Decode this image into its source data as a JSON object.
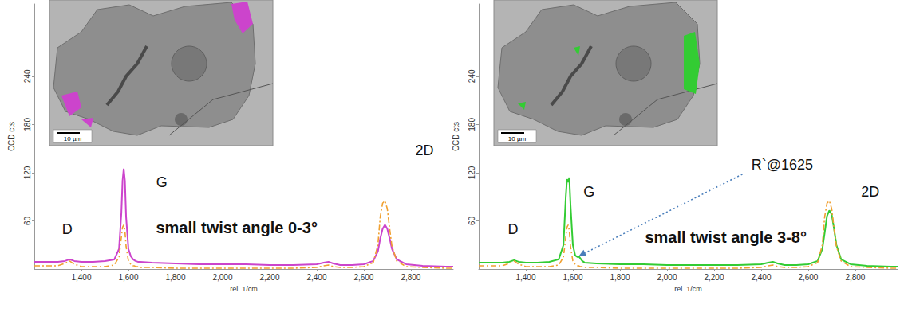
{
  "chart_data": [
    {
      "type": "line",
      "x_label": "rel. 1/cm",
      "y_label": "CCD cts",
      "xlim": [
        1200,
        2980
      ],
      "xticks": [
        1400,
        1600,
        1800,
        2000,
        2200,
        2400,
        2600,
        2800
      ],
      "ylim": [
        0,
        330
      ],
      "yticks": [
        60,
        120,
        180,
        240
      ],
      "grid": false,
      "x": [
        1200,
        1250,
        1300,
        1330,
        1350,
        1370,
        1400,
        1450,
        1500,
        1540,
        1560,
        1570,
        1575,
        1580,
        1585,
        1590,
        1600,
        1610,
        1620,
        1625,
        1630,
        1640,
        1650,
        1700,
        1800,
        1900,
        2000,
        2100,
        2200,
        2300,
        2400,
        2430,
        2450,
        2470,
        2500,
        2550,
        2600,
        2640,
        2660,
        2670,
        2680,
        2690,
        2700,
        2710,
        2720,
        2740,
        2780,
        2850,
        2950,
        2980
      ],
      "series": [
        {
          "color": "#cc44cc",
          "line_style": "solid",
          "values": [
            9,
            9,
            9,
            10,
            12,
            10,
            9,
            9,
            10,
            12,
            25,
            70,
            110,
            125,
            110,
            65,
            25,
            16,
            12,
            11,
            10,
            9,
            9,
            8,
            7,
            6,
            6,
            6,
            5,
            5,
            6,
            8,
            9,
            7,
            5,
            5,
            6,
            10,
            22,
            38,
            50,
            55,
            50,
            38,
            25,
            12,
            6,
            4,
            3,
            3
          ]
        },
        {
          "color": "#f0a030",
          "line_style": "dashdot",
          "values": [
            4,
            4,
            4,
            7,
            10,
            6,
            3,
            3,
            3,
            5,
            15,
            40,
            52,
            55,
            48,
            28,
            10,
            6,
            4,
            4,
            3,
            3,
            2,
            2,
            1,
            1,
            1,
            1,
            1,
            1,
            2,
            4,
            5,
            3,
            2,
            2,
            3,
            8,
            30,
            65,
            82,
            85,
            75,
            50,
            28,
            10,
            3,
            2,
            1,
            1
          ]
        }
      ],
      "scale_bar": "10 µm",
      "annotations": [
        {
          "text": "D",
          "x": 1340,
          "y": 50
        },
        {
          "text": "G",
          "x": 1742,
          "y": 108
        },
        {
          "text": "2D",
          "x": 2858,
          "y": 148
        },
        {
          "text": "small twist angle 0-3°",
          "x": 2060,
          "y": 52
        }
      ]
    },
    {
      "type": "line",
      "x_label": "rel. 1/cm",
      "y_label": "CCD cts",
      "xlim": [
        1200,
        2980
      ],
      "xticks": [
        1400,
        1600,
        1800,
        2000,
        2200,
        2400,
        2600,
        2800
      ],
      "ylim": [
        0,
        330
      ],
      "yticks": [
        60,
        120,
        180,
        240
      ],
      "grid": false,
      "x": [
        1200,
        1250,
        1300,
        1330,
        1350,
        1370,
        1400,
        1450,
        1500,
        1540,
        1560,
        1570,
        1575,
        1580,
        1585,
        1590,
        1600,
        1610,
        1620,
        1625,
        1630,
        1640,
        1650,
        1700,
        1800,
        1900,
        2000,
        2100,
        2200,
        2300,
        2400,
        2430,
        2450,
        2470,
        2500,
        2550,
        2600,
        2640,
        2660,
        2670,
        2680,
        2690,
        2700,
        2710,
        2720,
        2740,
        2780,
        2850,
        2950,
        2980
      ],
      "series": [
        {
          "color": "#33cc33",
          "line_style": "solid",
          "values": [
            8,
            8,
            8,
            9,
            11,
            9,
            8,
            8,
            9,
            12,
            30,
            90,
            112,
            108,
            114,
            80,
            30,
            17,
            15,
            16,
            14,
            10,
            8,
            7,
            6,
            6,
            5,
            5,
            5,
            5,
            6,
            8,
            9,
            7,
            5,
            5,
            6,
            10,
            25,
            45,
            66,
            73,
            68,
            50,
            30,
            12,
            6,
            4,
            3,
            3
          ]
        },
        {
          "color": "#f0a030",
          "line_style": "dashdot",
          "values": [
            4,
            4,
            4,
            7,
            10,
            6,
            3,
            3,
            3,
            5,
            15,
            40,
            52,
            55,
            48,
            28,
            10,
            6,
            4,
            4,
            3,
            3,
            2,
            2,
            1,
            1,
            1,
            1,
            1,
            1,
            2,
            4,
            5,
            3,
            2,
            2,
            3,
            8,
            30,
            65,
            82,
            85,
            75,
            50,
            28,
            10,
            3,
            2,
            1,
            1
          ]
        }
      ],
      "scale_bar": "10 µm",
      "annotations": [
        {
          "text": "D",
          "x": 1346,
          "y": 50
        },
        {
          "text": "G",
          "x": 1669,
          "y": 96
        },
        {
          "text": "2D",
          "x": 2864,
          "y": 96
        },
        {
          "text": "small twist angle 3-8°",
          "x": 2250,
          "y": 40
        },
        {
          "text": "R`@1625",
          "x": 2490,
          "y": 130,
          "target_x": 1625,
          "target_y": 16
        }
      ]
    }
  ]
}
